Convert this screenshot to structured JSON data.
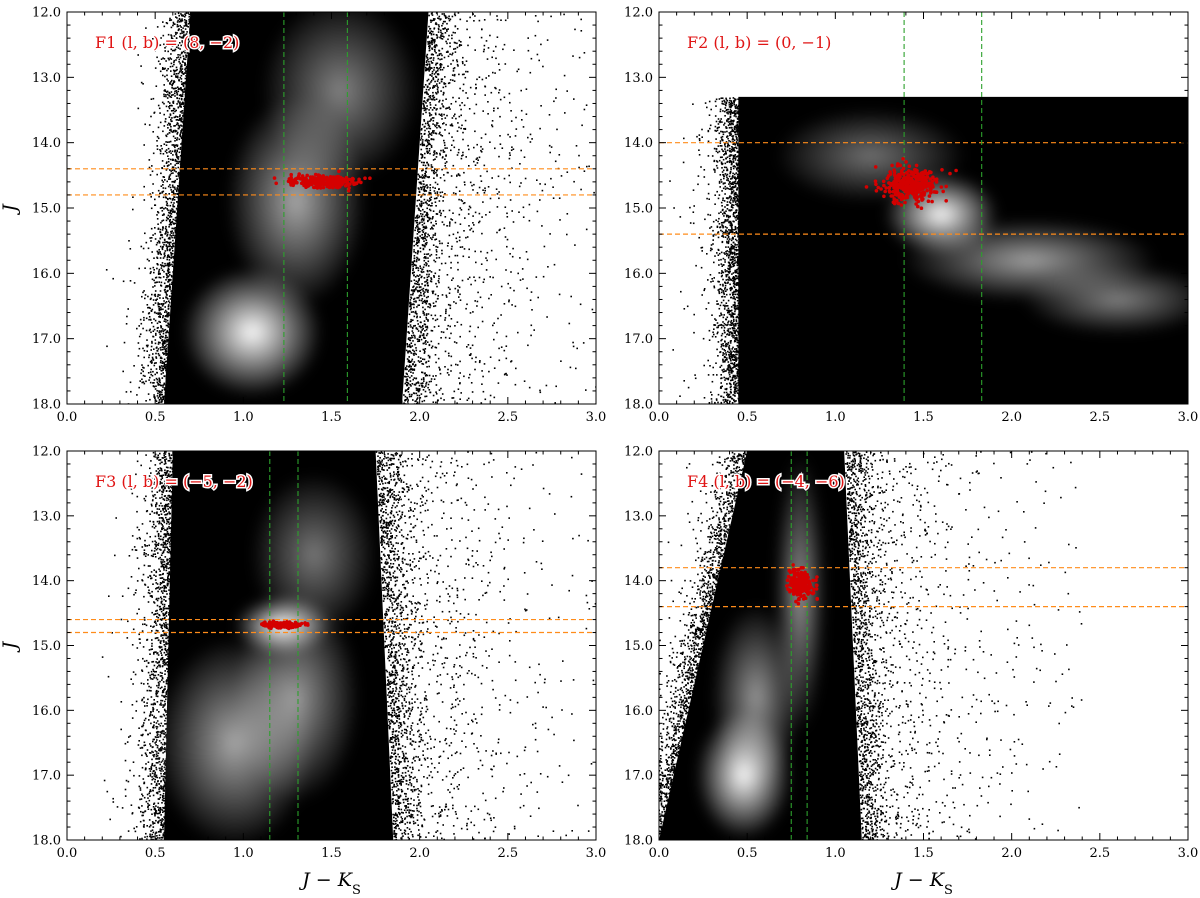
{
  "figure": {
    "xlabel": "J − K",
    "xlabel_sub": "S",
    "ylabel": "J"
  },
  "chart_data": [
    {
      "type": "scatter",
      "panel": "F1",
      "label": "F1 (l, b) = (8, −2)",
      "xlim": [
        0.0,
        3.0
      ],
      "ylim": [
        18.0,
        12.0
      ],
      "y_inverted": true,
      "xticks": [
        "0.0",
        "0.5",
        "1.0",
        "1.5",
        "2.0",
        "2.5",
        "3.0"
      ],
      "yticks": [
        "12.0",
        "13.0",
        "14.0",
        "15.0",
        "16.0",
        "17.0",
        "18.0"
      ],
      "show_xtick_labels": true,
      "show_xlabel": false,
      "show_ylabel": true,
      "density_blobs": [
        {
          "x": 1.05,
          "y": 16.9,
          "sx": 0.22,
          "sy": 0.55,
          "w": 1.0
        },
        {
          "x": 1.3,
          "y": 14.9,
          "sx": 0.22,
          "sy": 0.9,
          "w": 0.55
        },
        {
          "x": 1.55,
          "y": 13.2,
          "sx": 0.25,
          "sy": 0.8,
          "w": 0.35
        }
      ],
      "cloud": {
        "x_left_bottom": 0.55,
        "x_left_top": 0.7,
        "x_right_bottom": 1.9,
        "x_right_top": 2.05,
        "y_top": 12.0,
        "y_bottom": 18.0
      },
      "hlines": [
        14.4,
        14.8
      ],
      "vlines": [
        1.23,
        1.59
      ],
      "red_clump": {
        "x_center": 1.45,
        "x_spread": 0.22,
        "y_center": 14.6,
        "y_spread": 0.09,
        "n": 260
      },
      "colors": {
        "hline": "#ff8c1a",
        "vline": "#2ca02c",
        "rc": "#d40000"
      }
    },
    {
      "type": "scatter",
      "panel": "F2",
      "label": "F2 (l, b) = (0, −1)",
      "xlim": [
        0.0,
        3.0
      ],
      "ylim": [
        18.0,
        12.0
      ],
      "y_inverted": true,
      "xticks": [
        "0.0",
        "0.5",
        "1.0",
        "1.5",
        "2.0",
        "2.5",
        "3.0"
      ],
      "yticks": [
        "12.0",
        "13.0",
        "14.0",
        "15.0",
        "16.0",
        "17.0",
        "18.0"
      ],
      "show_xtick_labels": true,
      "show_xlabel": false,
      "show_ylabel": false,
      "density_blobs": [
        {
          "x": 1.6,
          "y": 15.1,
          "sx": 0.18,
          "sy": 0.35,
          "w": 1.0
        },
        {
          "x": 2.1,
          "y": 15.8,
          "sx": 0.4,
          "sy": 0.35,
          "w": 0.5
        },
        {
          "x": 2.6,
          "y": 16.4,
          "sx": 0.3,
          "sy": 0.3,
          "w": 0.35
        },
        {
          "x": 1.2,
          "y": 14.2,
          "sx": 0.3,
          "sy": 0.4,
          "w": 0.25
        }
      ],
      "cloud": {
        "x_left_bottom": 0.45,
        "x_left_top": 0.45,
        "x_right_bottom": 3.0,
        "x_right_top": 3.0,
        "y_top": 13.3,
        "y_bottom": 18.0
      },
      "hlines": [
        14.0,
        15.4
      ],
      "vlines": [
        1.39,
        1.83
      ],
      "red_clump": {
        "x_center": 1.42,
        "x_spread": 0.18,
        "y_center": 14.65,
        "y_spread": 0.28,
        "n": 320
      },
      "colors": {
        "hline": "#ff8c1a",
        "vline": "#2ca02c",
        "rc": "#d40000"
      }
    },
    {
      "type": "scatter",
      "panel": "F3",
      "label": "F3 (l, b) = (−5, −2)",
      "xlim": [
        0.0,
        3.0
      ],
      "ylim": [
        18.0,
        12.0
      ],
      "y_inverted": true,
      "xticks": [
        "0.0",
        "0.5",
        "1.0",
        "1.5",
        "2.0",
        "2.5",
        "3.0"
      ],
      "yticks": [
        "12.0",
        "13.0",
        "14.0",
        "15.0",
        "16.0",
        "17.0",
        "18.0"
      ],
      "show_xtick_labels": true,
      "show_xlabel": true,
      "show_ylabel": true,
      "density_blobs": [
        {
          "x": 1.22,
          "y": 14.7,
          "sx": 0.15,
          "sy": 0.25,
          "w": 1.0
        },
        {
          "x": 0.95,
          "y": 16.5,
          "sx": 0.25,
          "sy": 0.9,
          "w": 0.55
        },
        {
          "x": 1.3,
          "y": 15.8,
          "sx": 0.2,
          "sy": 0.9,
          "w": 0.45
        },
        {
          "x": 1.4,
          "y": 13.6,
          "sx": 0.2,
          "sy": 0.7,
          "w": 0.3
        }
      ],
      "cloud": {
        "x_left_bottom": 0.55,
        "x_left_top": 0.6,
        "x_right_bottom": 1.85,
        "x_right_top": 1.75,
        "y_top": 12.0,
        "y_bottom": 18.0
      },
      "hlines": [
        14.6,
        14.8
      ],
      "vlines": [
        1.15,
        1.31
      ],
      "red_clump": {
        "x_center": 1.22,
        "x_spread": 0.12,
        "y_center": 14.68,
        "y_spread": 0.04,
        "n": 220
      },
      "colors": {
        "hline": "#ff8c1a",
        "vline": "#2ca02c",
        "rc": "#d40000"
      }
    },
    {
      "type": "scatter",
      "panel": "F4",
      "label": "F4 (l, b) = (−4, −6)",
      "xlim": [
        0.0,
        3.0
      ],
      "ylim": [
        18.0,
        12.0
      ],
      "y_inverted": true,
      "xticks": [
        "0.0",
        "0.5",
        "1.0",
        "1.5",
        "2.0",
        "2.5",
        "3.0"
      ],
      "yticks": [
        "12.0",
        "13.0",
        "14.0",
        "15.0",
        "16.0",
        "17.0",
        "18.0"
      ],
      "show_xtick_labels": true,
      "show_xlabel": true,
      "show_ylabel": false,
      "density_blobs": [
        {
          "x": 0.48,
          "y": 17.0,
          "sx": 0.15,
          "sy": 0.55,
          "w": 1.0
        },
        {
          "x": 0.55,
          "y": 15.8,
          "sx": 0.14,
          "sy": 0.8,
          "w": 0.45
        },
        {
          "x": 0.8,
          "y": 14.2,
          "sx": 0.08,
          "sy": 1.2,
          "w": 0.45
        }
      ],
      "cloud": {
        "x_left_bottom": 0.0,
        "x_left_top": 0.5,
        "x_right_bottom": 1.15,
        "x_right_top": 1.05,
        "y_top": 12.0,
        "y_bottom": 18.0
      },
      "hlines": [
        13.8,
        14.4
      ],
      "vlines": [
        0.75,
        0.84
      ],
      "red_clump": {
        "x_center": 0.8,
        "x_spread": 0.09,
        "y_center": 14.05,
        "y_spread": 0.22,
        "n": 200
      },
      "colors": {
        "hline": "#ff8c1a",
        "vline": "#2ca02c",
        "rc": "#d40000"
      }
    }
  ]
}
